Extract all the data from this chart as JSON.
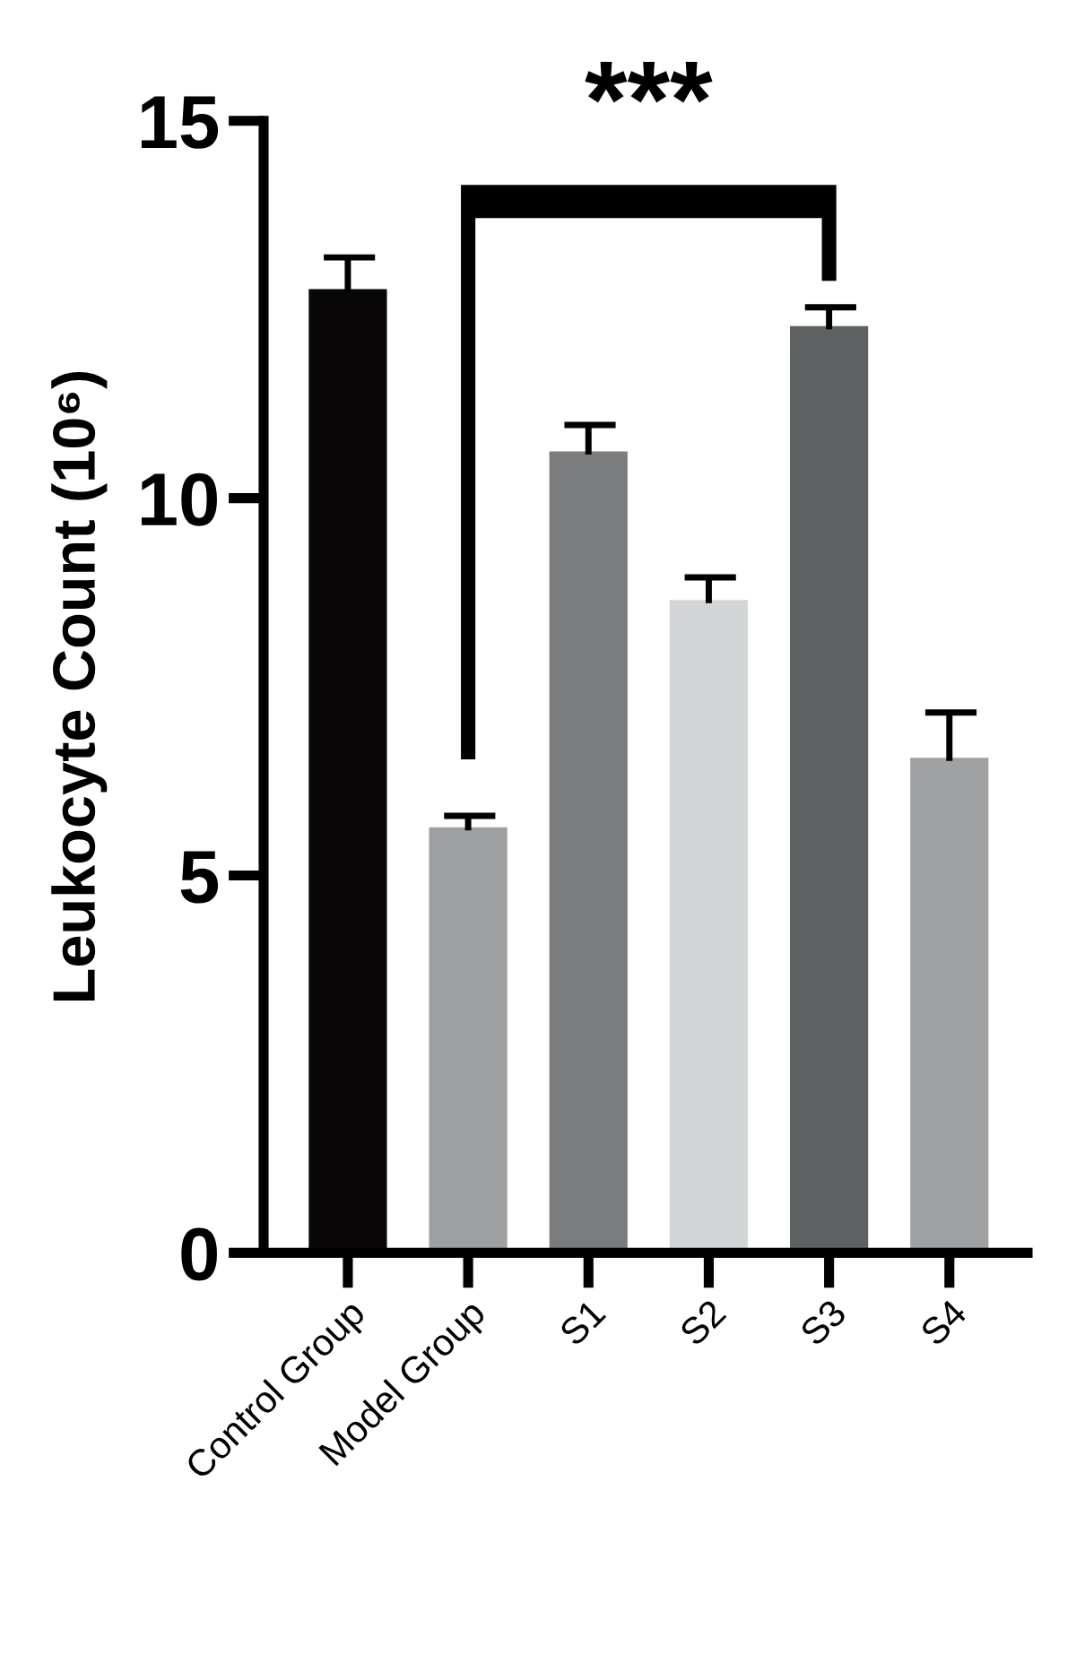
{
  "chart_data": {
    "type": "bar",
    "ylabel": "Leukocyte Count (10⁶)",
    "categories": [
      "Control Group",
      "Model Group",
      "S1",
      "S2",
      "S3",
      "S4"
    ],
    "values": [
      12.77,
      5.64,
      10.62,
      8.65,
      12.28,
      6.56
    ],
    "errors": [
      [
        12.77,
        13.19
      ],
      [
        5.64,
        5.79
      ],
      [
        10.62,
        10.97
      ],
      [
        8.65,
        8.95
      ],
      [
        12.28,
        12.53
      ],
      [
        6.56,
        7.16
      ]
    ],
    "colors": [
      "#0a0708",
      "#9d9fa0",
      "#7a7c7d",
      "#d2d5d6",
      "#5d6161",
      "#a0a1a2"
    ],
    "ylim": [
      0,
      15
    ],
    "yticks": [
      0,
      5,
      10,
      15
    ],
    "grid": false,
    "legend": false,
    "annotations": [
      "***"
    ]
  }
}
